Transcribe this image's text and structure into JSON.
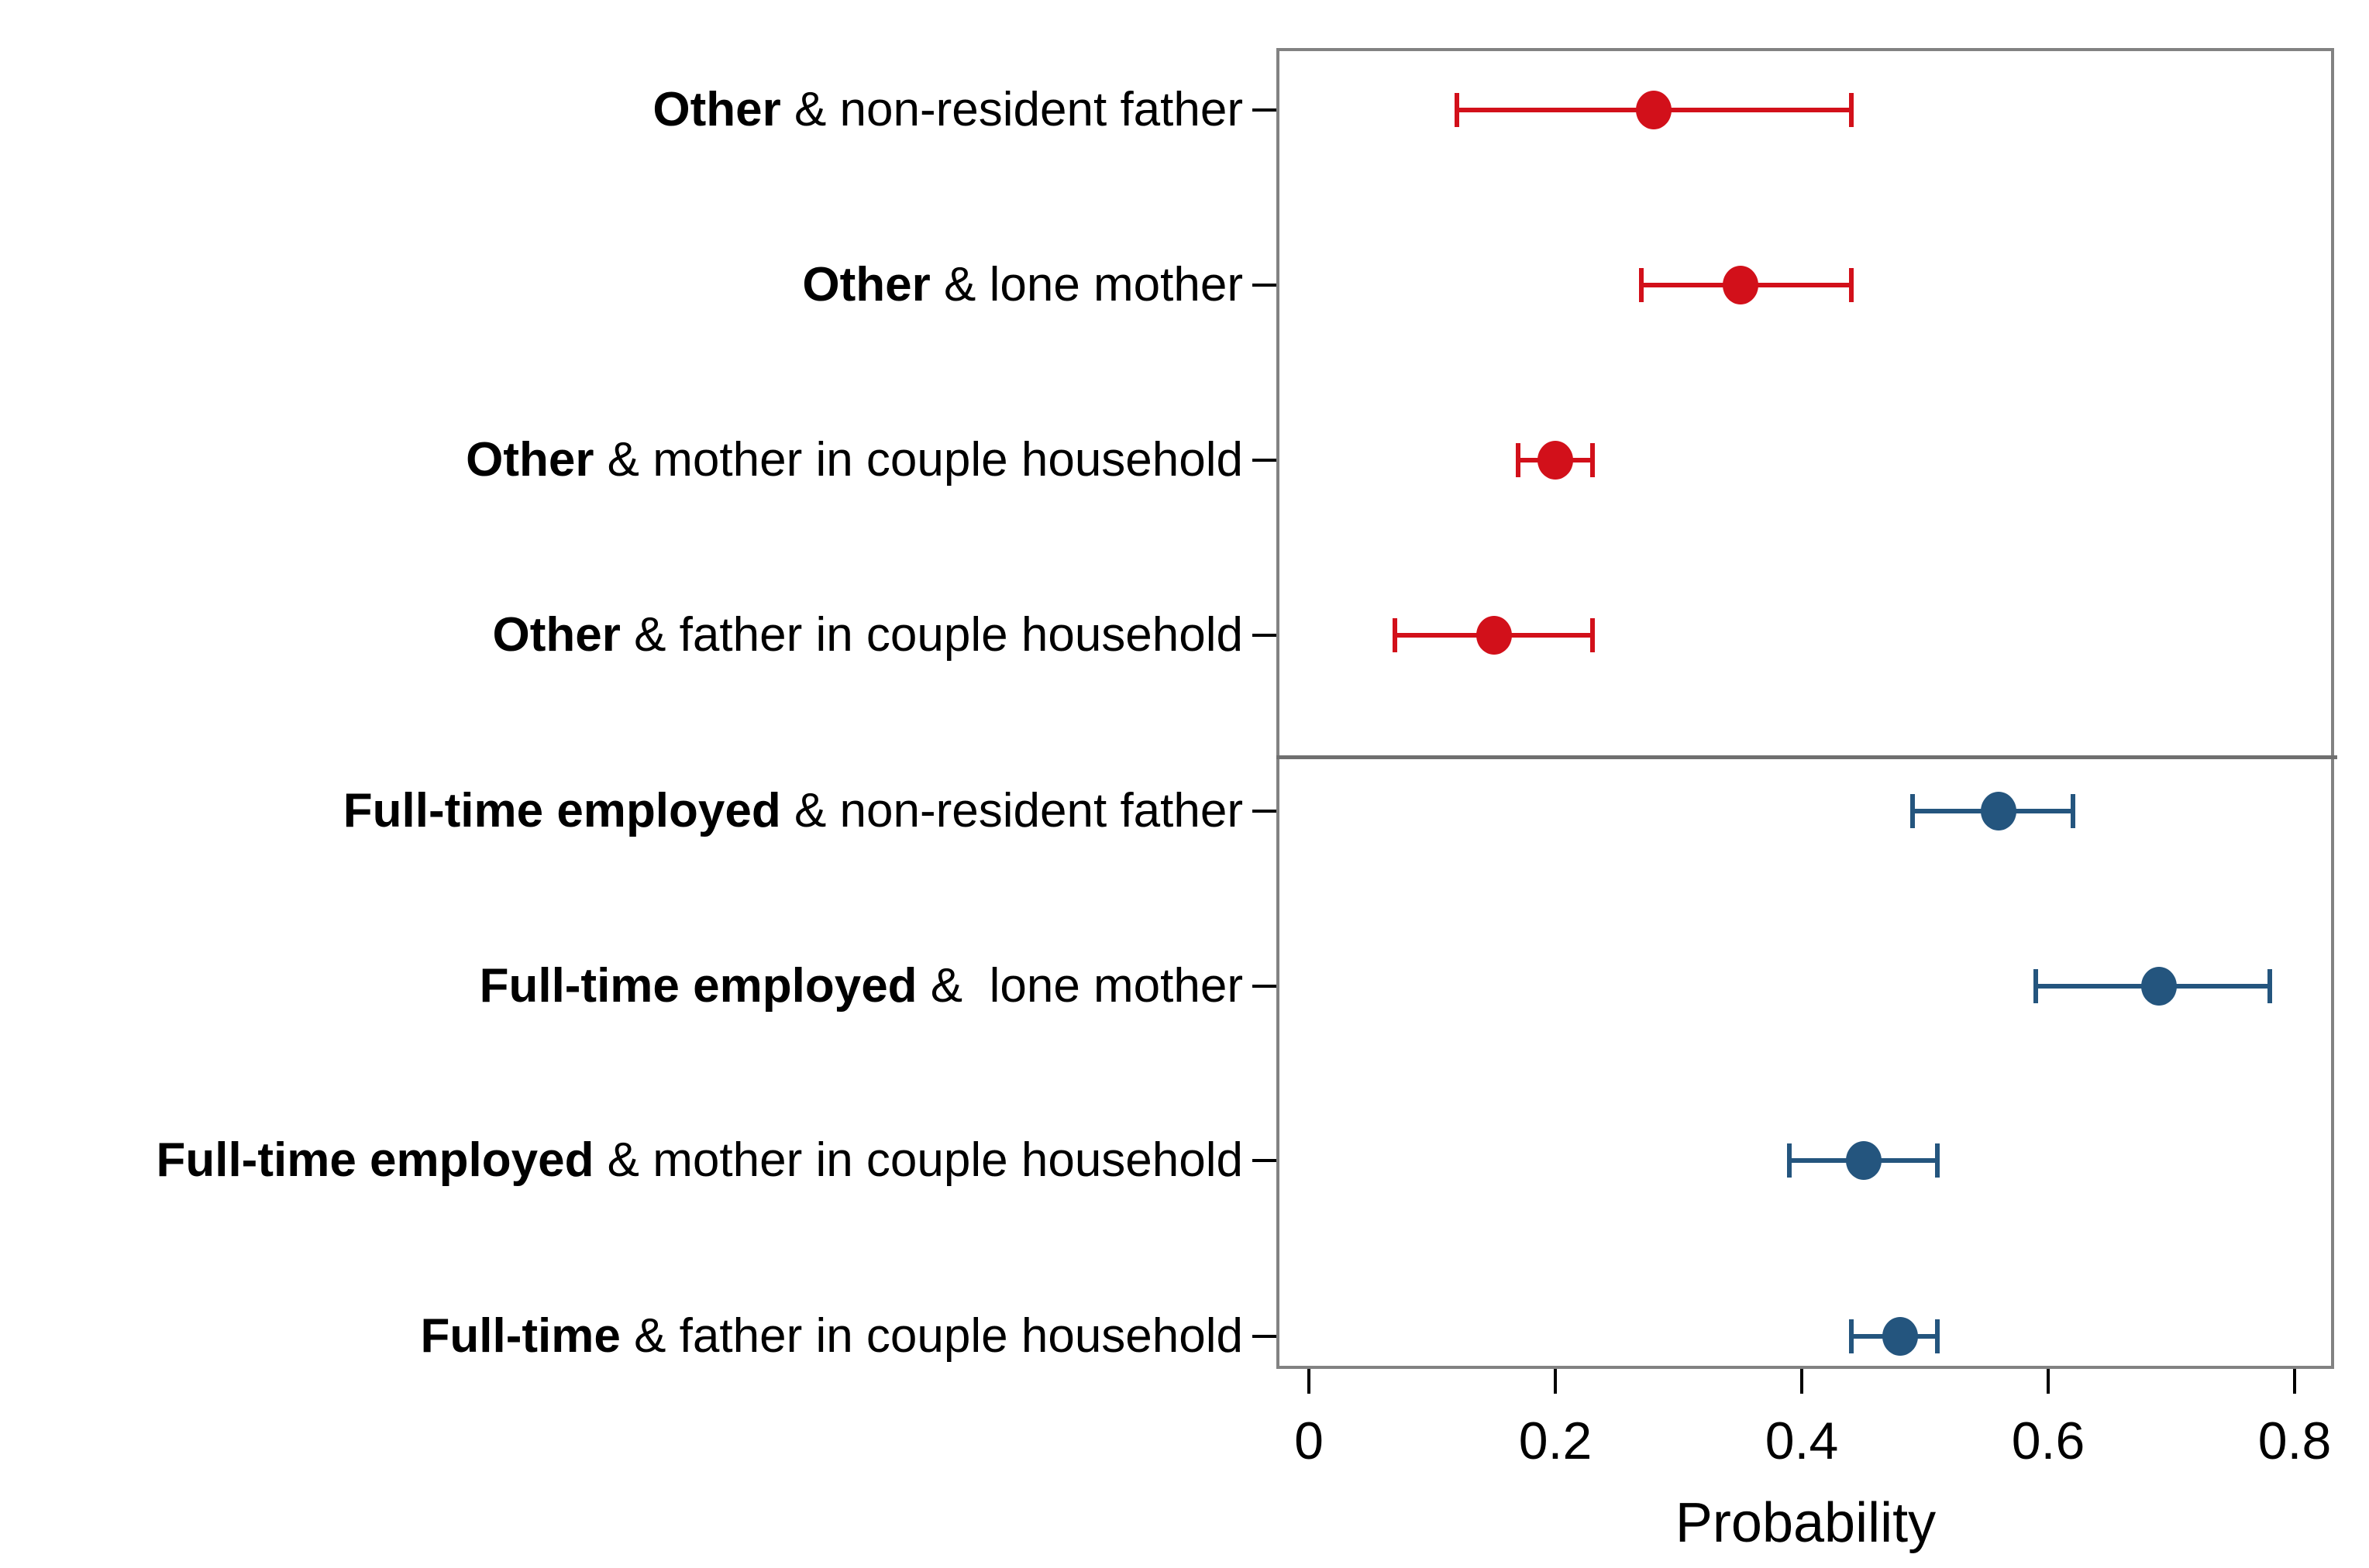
{
  "chart_data": {
    "type": "scatter",
    "subtype": "horizontal-dot-plot-with-95ci-error-bars",
    "title": "",
    "xlabel": "Probability",
    "ylabel": "",
    "grid": false,
    "legend_position": "none",
    "xlim": [
      -0.026,
      0.832
    ],
    "x_ticks": [
      {
        "label": "0",
        "value": 0
      },
      {
        "label": "0.2",
        "value": 0.2
      },
      {
        "label": "0.4",
        "value": 0.4
      },
      {
        "label": "0.6",
        "value": 0.6
      },
      {
        "label": "0.8",
        "value": 0.8
      }
    ],
    "panels": [
      {
        "group": "Other",
        "color": "#d2101a",
        "rows": [
          {
            "label_bold": "Other",
            "label_rest": " & non-resident father",
            "estimate": 0.28,
            "ci_low": 0.12,
            "ci_high": 0.44
          },
          {
            "label_bold": "Other",
            "label_rest": " & lone mother",
            "estimate": 0.35,
            "ci_low": 0.27,
            "ci_high": 0.44
          },
          {
            "label_bold": "Other",
            "label_rest": " & mother in couple household",
            "estimate": 0.2,
            "ci_low": 0.17,
            "ci_high": 0.23
          },
          {
            "label_bold": "Other",
            "label_rest": " & father in couple household",
            "estimate": 0.15,
            "ci_low": 0.07,
            "ci_high": 0.23
          }
        ]
      },
      {
        "group": "Full-time employed",
        "color": "#24557e",
        "rows": [
          {
            "label_bold": "Full-time employed",
            "label_rest": " & non-resident father",
            "estimate": 0.56,
            "ci_low": 0.49,
            "ci_high": 0.62
          },
          {
            "label_bold": "Full-time employed",
            "label_rest": " &  lone mother",
            "estimate": 0.69,
            "ci_low": 0.59,
            "ci_high": 0.78
          },
          {
            "label_bold": "Full-time employed",
            "label_rest": " & mother in couple household",
            "estimate": 0.45,
            "ci_low": 0.39,
            "ci_high": 0.51
          },
          {
            "label_bold": "Full-time",
            "label_rest": " & father in couple household",
            "estimate": 0.48,
            "ci_low": 0.44,
            "ci_high": 0.51
          }
        ]
      }
    ],
    "colors": {
      "other_series": "#d2101a",
      "fulltime_series": "#24557e",
      "frame": "#828282",
      "divider": "#6f6f6f",
      "text": "#000000"
    }
  }
}
